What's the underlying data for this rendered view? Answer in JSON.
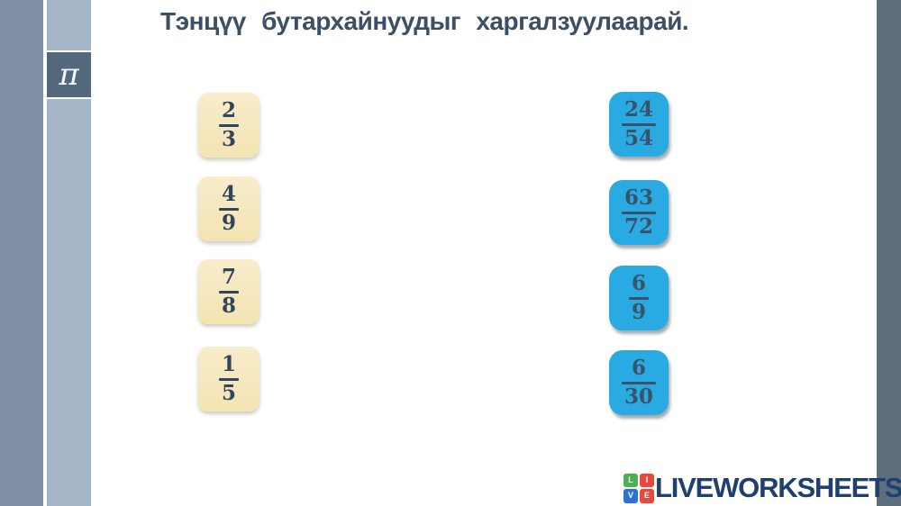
{
  "title": "Тэнцүү бутархайнуудыг харгалзуулаарай.",
  "sidebar": {
    "pi_symbol": "π"
  },
  "left_column": {
    "cards": [
      {
        "numerator": "2",
        "denominator": "3"
      },
      {
        "numerator": "4",
        "denominator": "9"
      },
      {
        "numerator": "7",
        "denominator": "8"
      },
      {
        "numerator": "1",
        "denominator": "5"
      }
    ]
  },
  "right_column": {
    "cards": [
      {
        "numerator": "24",
        "denominator": "54"
      },
      {
        "numerator": "63",
        "denominator": "72"
      },
      {
        "numerator": "6",
        "denominator": "9"
      },
      {
        "numerator": "6",
        "denominator": "30"
      }
    ]
  },
  "logo": {
    "text": "LIVEWORKSHEETS",
    "icon_letters": [
      "L",
      "I",
      "V",
      "E"
    ],
    "icon_colors": [
      "#4caf50",
      "#e8493c",
      "#2e6fd8",
      "#e8493c"
    ]
  },
  "colors": {
    "title_text": "#3c4f63",
    "left_card_bg": "#f6e8c0",
    "right_card_bg": "#29aae2",
    "fraction_text_left": "#31465d",
    "fraction_text_right": "#3c5268",
    "strip_dark": "#7e8fa3",
    "strip_light": "#a4b5c6",
    "strip_right": "#5e6e7d",
    "pi_box_bg": "#53677d",
    "logo_text": "#1e3f70"
  }
}
